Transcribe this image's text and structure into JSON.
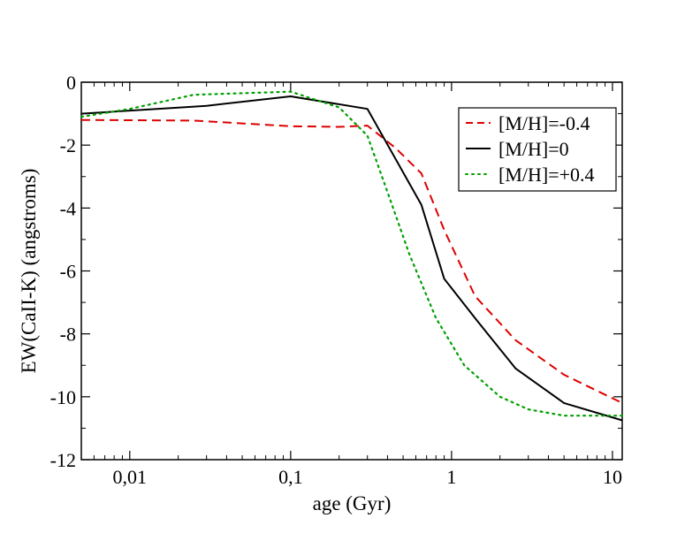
{
  "chart_data": {
    "type": "line",
    "title": "",
    "xlabel": "age (Gyr)",
    "ylabel": "EW(CaII-K) (angstroms)",
    "xscale": "log",
    "xlim": [
      0.005,
      11.5
    ],
    "ylim": [
      -12,
      0
    ],
    "xticks": [
      {
        "value": 0.01,
        "label": "0,01"
      },
      {
        "value": 0.1,
        "label": "0,1"
      },
      {
        "value": 1,
        "label": "1"
      },
      {
        "value": 10,
        "label": "10"
      }
    ],
    "yticks": [
      {
        "value": 0,
        "label": "0"
      },
      {
        "value": -2,
        "label": "-2"
      },
      {
        "value": -4,
        "label": "-4"
      },
      {
        "value": -6,
        "label": "-6"
      },
      {
        "value": -8,
        "label": "-8"
      },
      {
        "value": -10,
        "label": "-10"
      },
      {
        "value": -12,
        "label": "-12"
      }
    ],
    "legend_position": "top-right",
    "series": [
      {
        "name": "[M/H]=-0.4",
        "color": "#dd0000",
        "style": "dashed",
        "x": [
          0.005,
          0.025,
          0.1,
          0.2,
          0.3,
          0.45,
          0.65,
          0.9,
          1.4,
          2.5,
          5,
          11.5
        ],
        "y": [
          -1.2,
          -1.22,
          -1.4,
          -1.42,
          -1.38,
          -2.1,
          -2.9,
          -4.7,
          -6.8,
          -8.2,
          -9.3,
          -10.2
        ]
      },
      {
        "name": "[M/H]=0",
        "color": "#000000",
        "style": "solid",
        "x": [
          0.005,
          0.03,
          0.1,
          0.3,
          0.65,
          0.9,
          1.4,
          2.5,
          5,
          11.5
        ],
        "y": [
          -1.0,
          -0.75,
          -0.45,
          -0.85,
          -3.9,
          -6.25,
          -7.5,
          -9.1,
          -10.2,
          -10.75
        ]
      },
      {
        "name": "[M/H]=+0.4",
        "color": "#00a000",
        "style": "dotted",
        "x": [
          0.005,
          0.01,
          0.025,
          0.1,
          0.2,
          0.3,
          0.4,
          0.55,
          0.8,
          1.2,
          2.0,
          3.0,
          5.0,
          11.5
        ],
        "y": [
          -1.1,
          -0.85,
          -0.4,
          -0.3,
          -0.8,
          -1.7,
          -3.5,
          -5.5,
          -7.5,
          -9.0,
          -10.0,
          -10.4,
          -10.6,
          -10.6
        ]
      }
    ]
  }
}
